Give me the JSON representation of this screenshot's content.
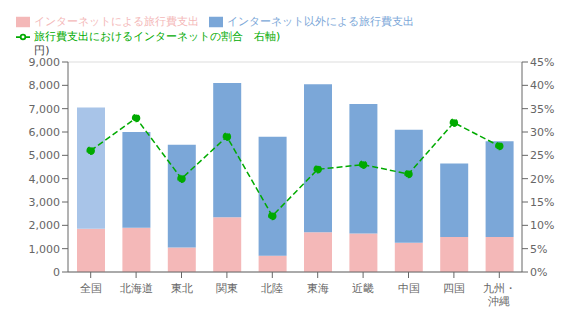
{
  "chart_data": {
    "type": "bar",
    "stacked": true,
    "grid": true,
    "legend": "upper left",
    "ylabel": "円)",
    "categories": [
      "全国",
      "北海道",
      "東北",
      "関東",
      "北陸",
      "東海",
      "近畿",
      "中国",
      "四国",
      "九州・\n沖縄"
    ],
    "series": [
      {
        "name": "インターネットによる旅行費支出",
        "type": "bar",
        "color": "#F4B8B8",
        "values": [
          1850,
          1900,
          1050,
          2350,
          700,
          1700,
          1650,
          1250,
          1500,
          1500
        ]
      },
      {
        "name": "インターネット以外による旅行費支出",
        "type": "bar",
        "color": "#7BA7D8",
        "colors": [
          "#A8C4E8",
          "#7BA7D8",
          "#7BA7D8",
          "#7BA7D8",
          "#7BA7D8",
          "#7BA7D8",
          "#7BA7D8",
          "#7BA7D8",
          "#7BA7D8",
          "#7BA7D8"
        ],
        "values": [
          5200,
          4100,
          4400,
          5750,
          5100,
          6350,
          5550,
          4850,
          3150,
          4100
        ]
      },
      {
        "name": "旅行費支出におけるインターネットの割合　右軸)",
        "type": "line",
        "axis": "y2",
        "color": "#00AA00",
        "line_style": "dashed",
        "marker": "circle",
        "values": [
          26,
          33,
          20,
          29,
          12,
          22,
          23,
          21,
          32,
          27
        ]
      }
    ],
    "ylim": [
      0,
      9000
    ],
    "yticks": [
      0,
      {
        "value": 1000,
        "label": "1,000"
      },
      {
        "value": 2000,
        "label": "2,000"
      },
      {
        "value": 3000,
        "label": "3,000"
      },
      {
        "value": 4000,
        "label": "4,000"
      },
      {
        "value": 5000,
        "label": "5,000"
      },
      {
        "value": 6000,
        "label": "6,000"
      },
      {
        "value": 7000,
        "label": "7,000"
      },
      {
        "value": 8000,
        "label": "8,000"
      },
      {
        "value": 9000,
        "label": "9,000"
      }
    ],
    "y2lim": [
      0,
      45
    ],
    "y2ticks": [
      {
        "value": 0,
        "label": "0%"
      },
      {
        "value": 5,
        "label": "5%"
      },
      {
        "value": 10,
        "label": "10%"
      },
      {
        "value": 15,
        "label": "15%"
      },
      {
        "value": 20,
        "label": "20%"
      },
      {
        "value": 25,
        "label": "25%"
      },
      {
        "value": 30,
        "label": "30%"
      },
      {
        "value": 35,
        "label": "35%"
      },
      {
        "value": 40,
        "label": "40%"
      },
      {
        "value": 45,
        "label": "45%"
      }
    ]
  }
}
